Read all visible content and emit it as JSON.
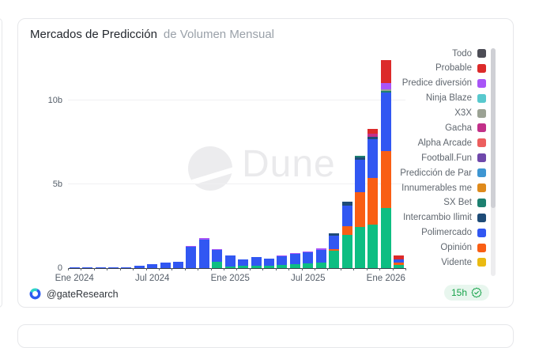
{
  "header": {
    "title": "Mercados de Predicción",
    "subtitle": "de Volumen Mensual"
  },
  "watermark": {
    "brand": "Dune"
  },
  "footer": {
    "author": "@gateResearch",
    "refreshed_badge": "15h"
  },
  "legend": {
    "items": [
      {
        "label": "Todo",
        "color": "#4c4c55"
      },
      {
        "label": "Probable",
        "color": "#dc2a2a"
      },
      {
        "label": "Predice diversión",
        "color": "#a855f7"
      },
      {
        "label": "Ninja Blaze",
        "color": "#58c9ce"
      },
      {
        "label": "X3X",
        "color": "#9ba294"
      },
      {
        "label": "Gacha",
        "color": "#c23089"
      },
      {
        "label": "Alpha Arcade",
        "color": "#ec5e5e"
      },
      {
        "label": "Football.Fun",
        "color": "#6f48ab"
      },
      {
        "label": "Predicción de Par",
        "color": "#3e96d2"
      },
      {
        "label": "Innumerables me",
        "color": "#df8a1c"
      },
      {
        "label": "SX Bet",
        "color": "#1d8070"
      },
      {
        "label": "Intercambio Ilimit",
        "color": "#1e4b77"
      },
      {
        "label": "Polimercado",
        "color": "#3157f2"
      },
      {
        "label": "Opinión",
        "color": "#f95e14"
      },
      {
        "label": "Vidente",
        "color": "#eaba12"
      }
    ]
  },
  "y_axis": {
    "ticks": [
      {
        "value": 0,
        "label": "0"
      },
      {
        "value": 5,
        "label": "5b"
      },
      {
        "value": 10,
        "label": "10b"
      }
    ]
  },
  "x_axis": {
    "ticks": [
      {
        "month_index": 0,
        "label": "Ene 2024"
      },
      {
        "month_index": 6,
        "label": "Jul 2024"
      },
      {
        "month_index": 12,
        "label": "Ene 2025"
      },
      {
        "month_index": 18,
        "label": "Jul 2025"
      },
      {
        "month_index": 24,
        "label": "Ene 2026"
      }
    ]
  },
  "chart_data": {
    "type": "bar",
    "stacked": true,
    "title": "Mercados de Predicción de Volumen Mensual",
    "value_unit": "b (miles de millones)",
    "ylim": [
      0,
      13
    ],
    "grid": true,
    "legend_position": "right",
    "categories": [
      "Ene 2024",
      "Feb 2024",
      "Mar 2024",
      "Abr 2024",
      "May 2024",
      "Jun 2024",
      "Jul 2024",
      "Ago 2024",
      "Sep 2024",
      "Oct 2024",
      "Nov 2024",
      "Dic 2024",
      "Ene 2025",
      "Feb 2025",
      "Mar 2025",
      "Abr 2025",
      "May 2025",
      "Jun 2025",
      "Jul 2025",
      "Ago 2025",
      "Sep 2025",
      "Oct 2025",
      "Nov 2025",
      "Dic 2025",
      "Ene 2026",
      "Feb 2026"
    ],
    "series": [
      {
        "id": "green",
        "legend_label": null,
        "color": "#0dbe82",
        "values": [
          0,
          0,
          0,
          0,
          0,
          0,
          0,
          0,
          0,
          0,
          0,
          0.36,
          0.1,
          0.12,
          0.15,
          0.14,
          0.2,
          0.25,
          0.3,
          0.35,
          1.05,
          2.0,
          2.45,
          2.6,
          3.6,
          0.19
        ]
      },
      {
        "id": "orange",
        "legend_label": "Opinión",
        "color": "#f95e14",
        "values": [
          0,
          0,
          0,
          0,
          0,
          0,
          0,
          0,
          0,
          0,
          0,
          0,
          0,
          0,
          0,
          0,
          0,
          0,
          0,
          0,
          0.1,
          0.5,
          2.1,
          2.8,
          3.4,
          0.16
        ]
      },
      {
        "id": "blue",
        "legend_label": "Polimercado",
        "color": "#3157f2",
        "values": [
          0.03,
          0.04,
          0.05,
          0.05,
          0.07,
          0.12,
          0.25,
          0.31,
          0.4,
          1.26,
          1.7,
          0.72,
          0.64,
          0.38,
          0.5,
          0.42,
          0.52,
          0.62,
          0.65,
          0.75,
          0.8,
          1.25,
          1.9,
          2.3,
          3.45,
          0.19
        ]
      },
      {
        "id": "navy",
        "legend_label": "Intercambio Ilimit",
        "color": "#1e4b77",
        "values": [
          0,
          0,
          0,
          0,
          0,
          0,
          0,
          0,
          0,
          0,
          0,
          0,
          0,
          0,
          0,
          0,
          0,
          0,
          0,
          0,
          0.15,
          0.2,
          0.15,
          0.15,
          0,
          0
        ]
      },
      {
        "id": "teal",
        "legend_label": "SX Bet",
        "color": "#1d8070",
        "values": [
          0,
          0,
          0,
          0,
          0,
          0,
          0,
          0,
          0,
          0,
          0,
          0,
          0,
          0,
          0,
          0,
          0,
          0,
          0,
          0,
          0,
          0,
          0.1,
          0,
          0.12,
          0
        ]
      },
      {
        "id": "gray",
        "legend_label": "X3X",
        "color": "#9ba294",
        "values": [
          0,
          0,
          0,
          0,
          0,
          0,
          0,
          0,
          0,
          0,
          0,
          0,
          0,
          0,
          0,
          0,
          0,
          0,
          0,
          0,
          0,
          0,
          0,
          0,
          0.08,
          0
        ]
      },
      {
        "id": "magenta",
        "legend_label": "Gacha",
        "color": "#c23089",
        "values": [
          0,
          0,
          0,
          0,
          0,
          0,
          0,
          0,
          0,
          0,
          0,
          0,
          0,
          0,
          0,
          0,
          0,
          0,
          0,
          0,
          0,
          0,
          0,
          0.18,
          0,
          0
        ]
      },
      {
        "id": "violet",
        "legend_label": "Predice diversión",
        "color": "#a855f7",
        "values": [
          0,
          0,
          0,
          0,
          0,
          0,
          0,
          0,
          0,
          0.08,
          0.1,
          0.04,
          0.03,
          0.02,
          0.03,
          0.02,
          0.03,
          0.03,
          0.03,
          0.1,
          0,
          0,
          0,
          0,
          0.39,
          0
        ]
      },
      {
        "id": "red",
        "legend_label": "Probable",
        "color": "#dc2a2a",
        "values": [
          0,
          0,
          0,
          0,
          0,
          0,
          0,
          0,
          0,
          0,
          0,
          0,
          0,
          0,
          0,
          0,
          0,
          0,
          0,
          0,
          0,
          0,
          0,
          0.27,
          1.36,
          0.21
        ]
      }
    ]
  }
}
